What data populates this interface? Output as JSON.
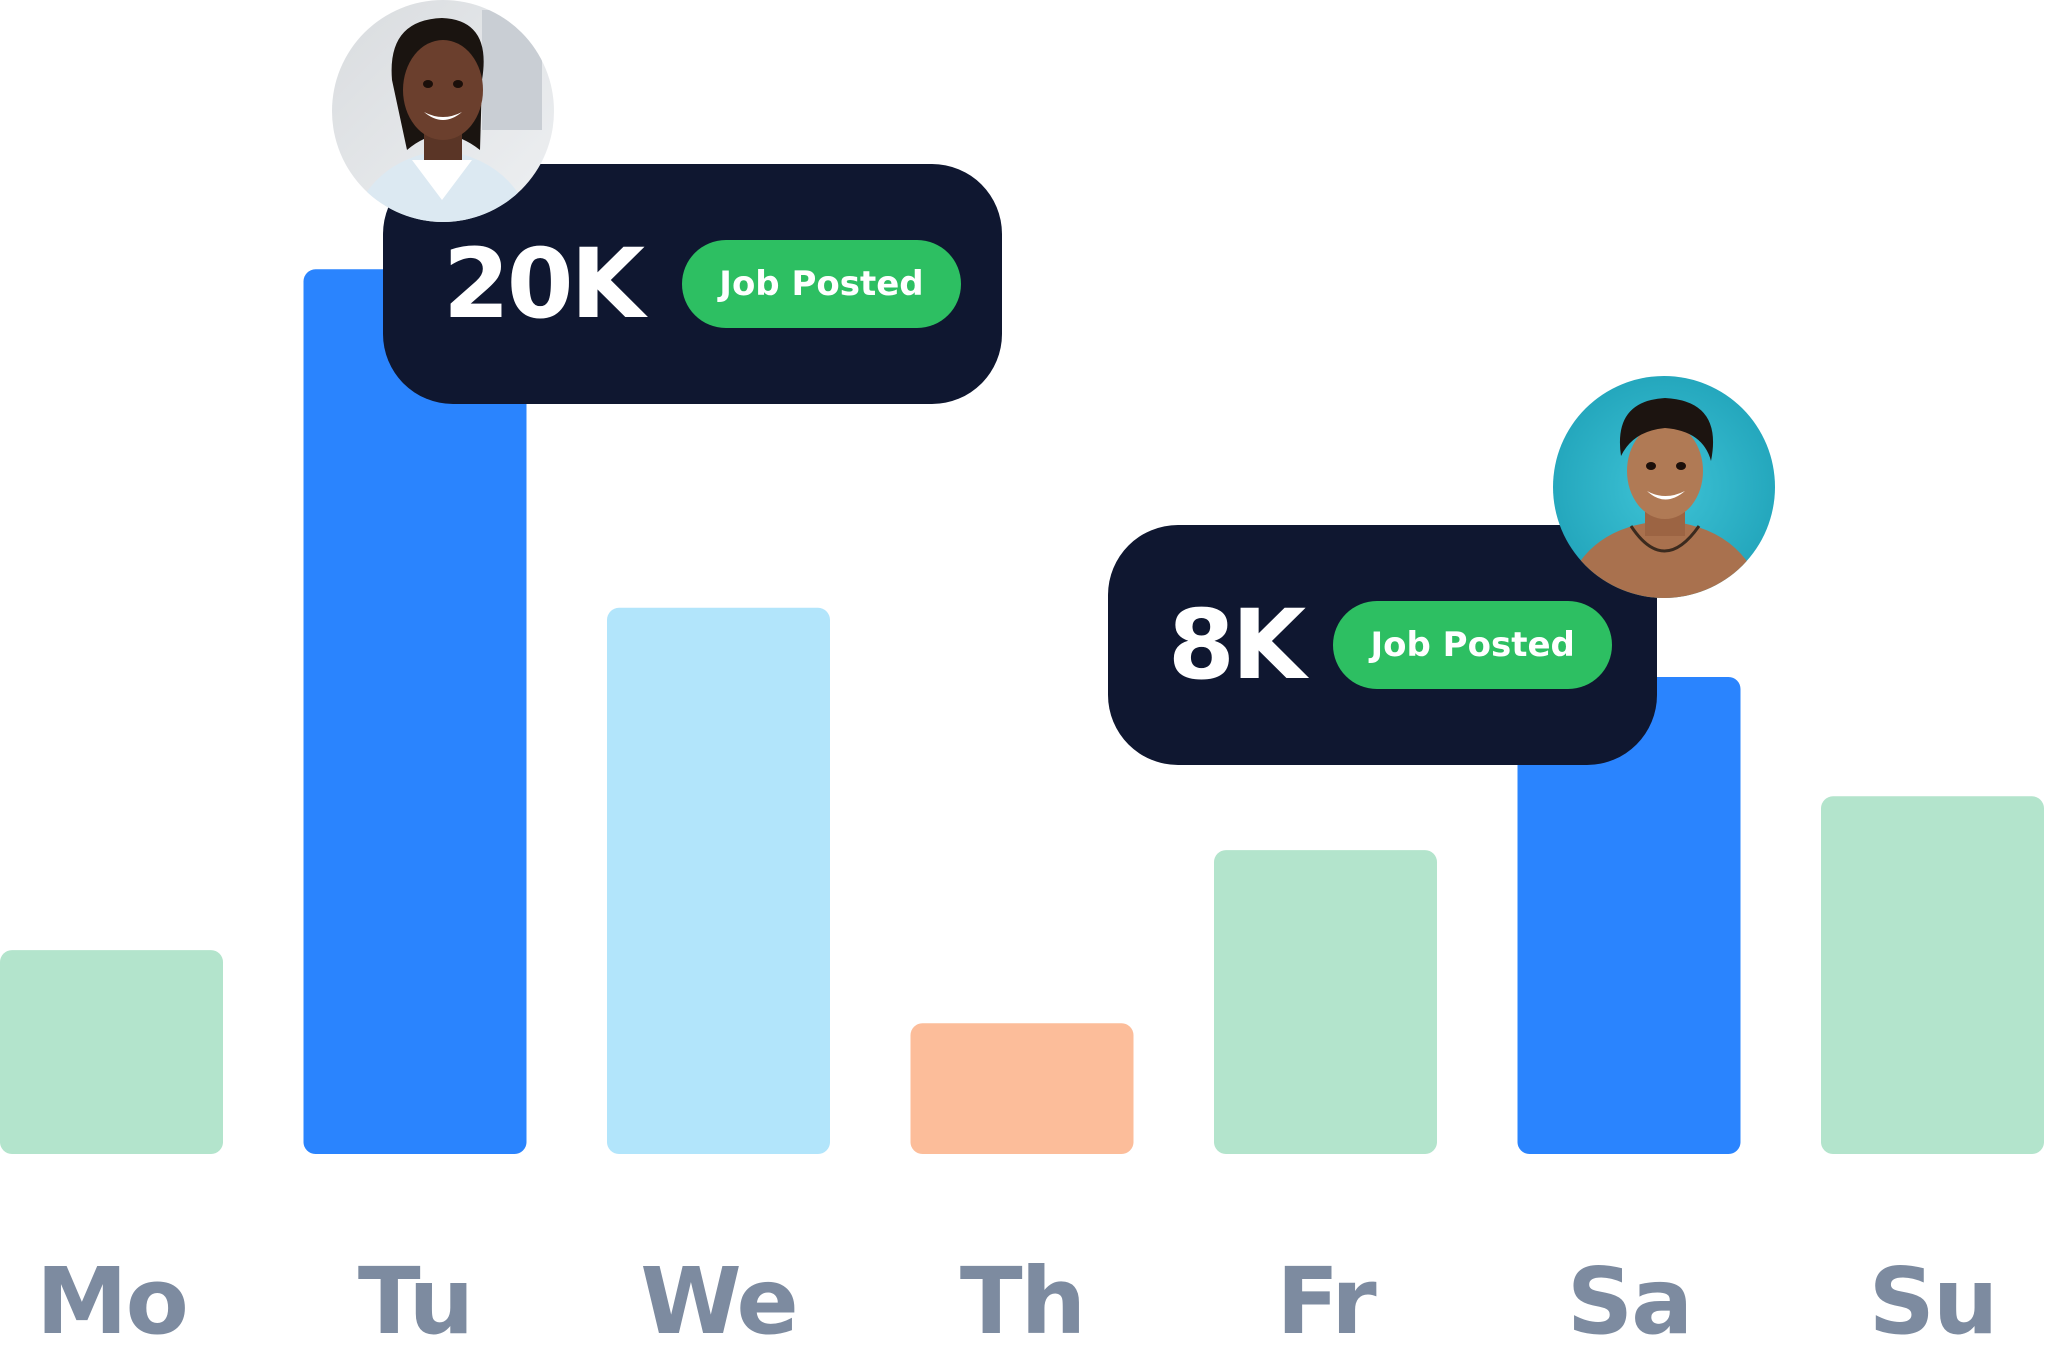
{
  "chart_data": {
    "type": "bar",
    "categories": [
      "Mo",
      "Tu",
      "We",
      "Th",
      "Fr",
      "Sa",
      "Su"
    ],
    "values": [
      5.3,
      23.0,
      14.2,
      3.4,
      7.9,
      12.4,
      9.3
    ],
    "ylim": [
      0,
      30
    ],
    "grid": false,
    "legend": "none",
    "bar_colors": [
      "#b3e4cc",
      "#2a84fe",
      "#b2e5fb",
      "#fcbd9a",
      "#b3e4cc",
      "#2a84fe",
      "#b3e4cc"
    ],
    "label_color": "#7d8ba0"
  },
  "callouts": [
    {
      "value": "20K",
      "badge": "Job Posted",
      "bar_index": 1,
      "avatar": "woman-avatar",
      "background": "#0f1730",
      "badge_color": "#2dbf62"
    },
    {
      "value": "8K",
      "badge": "Job Posted",
      "bar_index": 5,
      "avatar": "man-avatar",
      "background": "#0f1730",
      "badge_color": "#2dbf62"
    }
  ]
}
